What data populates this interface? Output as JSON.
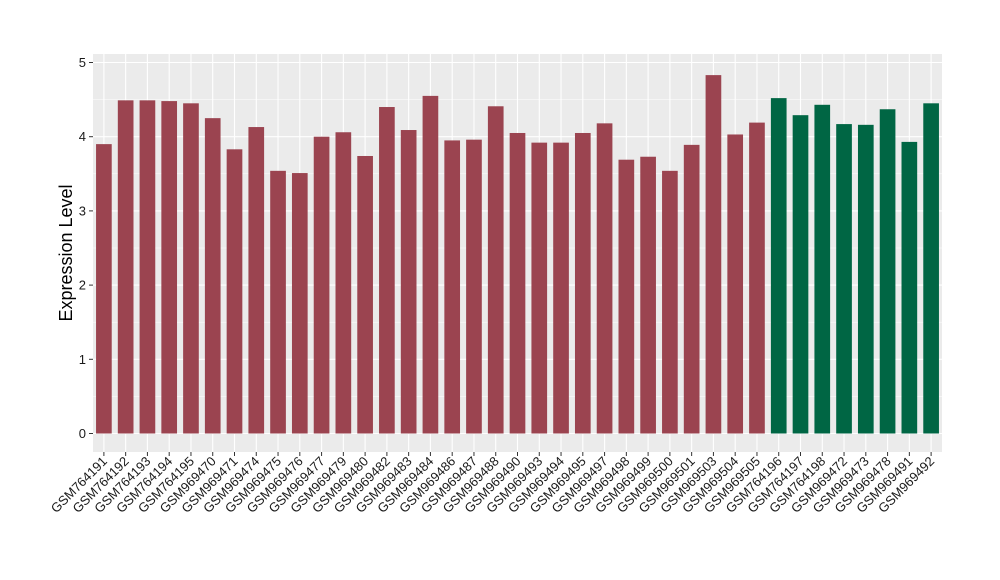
{
  "chart_data": {
    "type": "bar",
    "title": "",
    "xlabel": "",
    "ylabel": "Expression Level",
    "ylim": [
      0,
      5
    ],
    "yticks": [
      0,
      1,
      2,
      3,
      4,
      5
    ],
    "grid": true,
    "colors": {
      "group1": "#9b4450",
      "group2": "#006644",
      "panel": "#ebebeb",
      "gridline": "#ffffff"
    },
    "categories": [
      "GSM764191",
      "GSM764192",
      "GSM764193",
      "GSM764194",
      "GSM764195",
      "GSM969470",
      "GSM969471",
      "GSM969474",
      "GSM969475",
      "GSM969476",
      "GSM969477",
      "GSM969479",
      "GSM969480",
      "GSM969482",
      "GSM969483",
      "GSM969484",
      "GSM969486",
      "GSM969487",
      "GSM969488",
      "GSM969490",
      "GSM969493",
      "GSM969494",
      "GSM969495",
      "GSM969497",
      "GSM969498",
      "GSM969499",
      "GSM969500",
      "GSM969501",
      "GSM969503",
      "GSM969504",
      "GSM969505",
      "GSM764196",
      "GSM764197",
      "GSM764198",
      "GSM969472",
      "GSM969473",
      "GSM969478",
      "GSM969491",
      "GSM969492"
    ],
    "values": [
      3.9,
      4.49,
      4.49,
      4.48,
      4.45,
      4.25,
      3.83,
      4.13,
      3.54,
      3.51,
      4.0,
      4.06,
      3.74,
      4.4,
      4.09,
      4.55,
      3.95,
      3.96,
      4.41,
      4.05,
      3.92,
      3.92,
      4.05,
      4.18,
      3.69,
      3.73,
      3.54,
      3.89,
      4.83,
      4.03,
      4.19,
      4.52,
      4.29,
      4.43,
      4.17,
      4.16,
      4.37,
      3.93,
      4.45
    ],
    "groups": [
      1,
      1,
      1,
      1,
      1,
      1,
      1,
      1,
      1,
      1,
      1,
      1,
      1,
      1,
      1,
      1,
      1,
      1,
      1,
      1,
      1,
      1,
      1,
      1,
      1,
      1,
      1,
      1,
      1,
      1,
      1,
      2,
      2,
      2,
      2,
      2,
      2,
      2,
      2
    ]
  }
}
